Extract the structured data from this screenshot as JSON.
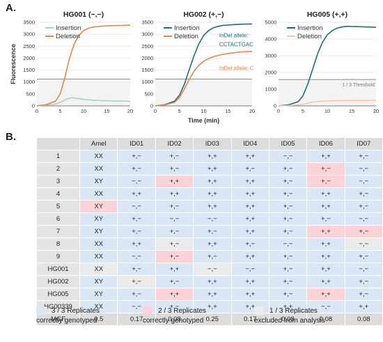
{
  "panel_a_label": "A.",
  "panel_b_label": "B.",
  "chart_data": [
    {
      "type": "line",
      "title": "HG001 (−,−)",
      "ylabel": "Fluorescence",
      "xlabel": "",
      "xlim": [
        0,
        20
      ],
      "ylim": [
        0,
        3500
      ],
      "xticks": [
        0,
        5,
        10,
        15,
        20
      ],
      "yticks": [
        0,
        500,
        1000,
        1500,
        2000,
        2500,
        3000,
        3500
      ],
      "legend": "top-left",
      "threshold": 1120,
      "threshold_label": "",
      "series": [
        {
          "name": "Insertion",
          "color": "#a8d3c4",
          "x": [
            0,
            2,
            4,
            5,
            6,
            7,
            7.5,
            8,
            9,
            10,
            12,
            14,
            16,
            18,
            20
          ],
          "y": [
            0,
            30,
            80,
            150,
            250,
            320,
            340,
            330,
            300,
            270,
            240,
            220,
            210,
            200,
            190
          ]
        },
        {
          "name": "Deletion",
          "color": "#e8834a",
          "x": [
            0,
            2,
            4,
            5,
            6,
            7,
            8,
            9,
            10,
            11,
            12,
            14,
            16,
            18,
            20
          ],
          "y": [
            0,
            50,
            200,
            500,
            1200,
            2000,
            2600,
            2950,
            3150,
            3250,
            3300,
            3340,
            3360,
            3370,
            3380
          ]
        }
      ],
      "annotations": []
    },
    {
      "type": "line",
      "title": "HG002 (+,−)",
      "ylabel": "",
      "xlabel": "Time (min)",
      "xlim": [
        0,
        20
      ],
      "ylim": [
        0,
        3500
      ],
      "xticks": [
        0,
        5,
        10,
        15,
        20
      ],
      "yticks": [
        0,
        500,
        1000,
        1500,
        2000,
        2500,
        3000,
        3500
      ],
      "legend": "top-left",
      "threshold": 1120,
      "threshold_label": "",
      "series": [
        {
          "name": "Insertion",
          "color": "#1f6b7f",
          "x": [
            0,
            2,
            4,
            5,
            6,
            7,
            8,
            9,
            10,
            11,
            12,
            13,
            14,
            16,
            18,
            20
          ],
          "y": [
            0,
            50,
            200,
            450,
            900,
            1500,
            2100,
            2600,
            2950,
            3150,
            3270,
            3330,
            3370,
            3400,
            3420,
            3430
          ]
        },
        {
          "name": "Deletion",
          "color": "#e8834a",
          "x": [
            0,
            2,
            4,
            5,
            6,
            7,
            8,
            9,
            10,
            11,
            12,
            14,
            16,
            18,
            20
          ],
          "y": [
            0,
            40,
            150,
            350,
            700,
            1100,
            1450,
            1700,
            1870,
            1980,
            2060,
            2160,
            2220,
            2260,
            2280
          ]
        }
      ],
      "annotations": [
        {
          "text": "InDel allele:",
          "color": "#1f6b7f",
          "x": 13.2,
          "y": 2870
        },
        {
          "text": "CCTACTGAC",
          "color": "#1f6b7f",
          "x": 13.2,
          "y": 2500
        },
        {
          "text": "InDel allele: C",
          "color": "#e8834a",
          "x": 13.2,
          "y": 1500
        }
      ]
    },
    {
      "type": "line",
      "title": "HG005 (+,+)",
      "ylabel": "",
      "xlabel": "",
      "xlim": [
        0,
        20
      ],
      "ylim": [
        0,
        5000
      ],
      "xticks": [
        0,
        5,
        10,
        15,
        20
      ],
      "yticks": [
        0,
        1000,
        2000,
        3000,
        4000,
        5000
      ],
      "legend": "top-left",
      "threshold": 1580,
      "threshold_label": "1 / 3 Threshold",
      "series": [
        {
          "name": "Insertion",
          "color": "#1f6b7f",
          "x": [
            0,
            2,
            4,
            5,
            6,
            7,
            8,
            9,
            10,
            11,
            12,
            13,
            14,
            16,
            18,
            20
          ],
          "y": [
            0,
            60,
            250,
            600,
            1300,
            2200,
            3100,
            3800,
            4250,
            4500,
            4650,
            4720,
            4760,
            4740,
            4720,
            4700
          ]
        },
        {
          "name": "Deletion",
          "color": "#f5c9a6",
          "x": [
            0,
            2,
            4,
            5,
            6,
            7,
            8,
            10,
            12,
            14,
            16,
            18,
            20
          ],
          "y": [
            0,
            20,
            60,
            100,
            160,
            220,
            260,
            300,
            310,
            315,
            320,
            320,
            320
          ]
        }
      ],
      "annotations": []
    }
  ],
  "table": {
    "columns": [
      "",
      "Amel",
      "ID01",
      "ID02",
      "ID03",
      "ID04",
      "ID05",
      "ID06",
      "ID07"
    ],
    "rows": [
      {
        "label": "1",
        "cells": [
          "XX",
          "+,−",
          "+,−",
          "+,+",
          "+,+",
          "−,−",
          "+,+",
          "+,−"
        ],
        "status": [
          "b",
          "b",
          "b",
          "b",
          "b",
          "b",
          "b",
          "b"
        ]
      },
      {
        "label": "2",
        "cells": [
          "XX",
          "+,−",
          "+,−",
          "+,+",
          "+,−",
          "+,−",
          "+,−",
          "−,−"
        ],
        "status": [
          "b",
          "b",
          "b",
          "b",
          "b",
          "b",
          "p",
          "b"
        ]
      },
      {
        "label": "3",
        "cells": [
          "XY",
          "−,−",
          "+,+",
          "+,+",
          "+,+",
          "+,−",
          "+,−",
          "−,−"
        ],
        "status": [
          "b",
          "b",
          "p",
          "b",
          "b",
          "b",
          "p",
          "b"
        ]
      },
      {
        "label": "4",
        "cells": [
          "XX",
          "+,+",
          "+,+",
          "+,+",
          "+,+",
          "+,−",
          "+,+",
          "+,−"
        ],
        "status": [
          "b",
          "b",
          "b",
          "b",
          "b",
          "b",
          "b",
          "b"
        ]
      },
      {
        "label": "5",
        "cells": [
          "XY",
          "−,−",
          "+,−",
          "+,+",
          "+,+",
          "+,−",
          "+,+",
          "+,−"
        ],
        "status": [
          "p",
          "b",
          "b",
          "b",
          "b",
          "b",
          "b",
          "b"
        ]
      },
      {
        "label": "6",
        "cells": [
          "XY",
          "+,−",
          "−,−",
          "−,−",
          "+,+",
          "+,−",
          "+,−",
          "−,−"
        ],
        "status": [
          "b",
          "b",
          "b",
          "b",
          "b",
          "b",
          "b",
          "b"
        ]
      },
      {
        "label": "7",
        "cells": [
          "XY",
          "+,−",
          "+,−",
          "+,−",
          "+,+",
          "+,−",
          "+,+",
          "+,−"
        ],
        "status": [
          "b",
          "b",
          "b",
          "b",
          "b",
          "b",
          "p",
          "p"
        ]
      },
      {
        "label": "8",
        "cells": [
          "XX",
          "+,+",
          "+,−",
          "+,+",
          "+,−",
          "−,−",
          "+,+",
          "−,−"
        ],
        "status": [
          "b",
          "b",
          "g",
          "b",
          "b",
          "b",
          "b",
          "g"
        ]
      },
      {
        "label": "9",
        "cells": [
          "XX",
          "−,−",
          "+,−",
          "+,−",
          "+,+",
          "+,−",
          "+,+",
          "+,−"
        ],
        "status": [
          "b",
          "b",
          "p",
          "b",
          "b",
          "b",
          "b",
          "b"
        ]
      },
      {
        "label": "HG001",
        "cells": [
          "XX",
          "+,−",
          "+,+",
          "−,−",
          "−,−",
          "+,−",
          "+,+",
          "−,−"
        ],
        "status": [
          "g",
          "b",
          "b",
          "g",
          "b",
          "b",
          "b",
          "b"
        ]
      },
      {
        "label": "HG002",
        "cells": [
          "XY",
          "+,−",
          "+,−",
          "+,+",
          "+,+",
          "+,−",
          "+,+",
          "+,−"
        ],
        "status": [
          "b",
          "g",
          "b",
          "b",
          "b",
          "b",
          "b",
          "b"
        ]
      },
      {
        "label": "HG005",
        "cells": [
          "XY",
          "+,−",
          "+,+",
          "+,+",
          "+,+",
          "+,−",
          "+,+",
          "+,−"
        ],
        "status": [
          "b",
          "b",
          "p",
          "b",
          "b",
          "b",
          "p",
          "b"
        ]
      },
      {
        "label": "HG00339",
        "cells": [
          "XX",
          "−,−",
          "+,−",
          "+,+",
          "+,+",
          "+,+",
          "−,−",
          "+,+"
        ],
        "status": [
          "b",
          "b",
          "b",
          "b",
          "b",
          "b",
          "b",
          "b"
        ]
      }
    ],
    "mgf": {
      "label": "MGF",
      "cells": [
        "0.5",
        "0.17",
        "0.08",
        "0.25",
        "0.17",
        "0.08",
        "0.08",
        "0.08"
      ]
    }
  },
  "legend_items": [
    {
      "line1": "3 / 3 Replicates",
      "line2": "correctly genotyped",
      "color": "#d9e7f5"
    },
    {
      "line1": "2 / 3 Replicates",
      "line2": "correctly genotyped",
      "color": "#f9d3d7"
    },
    {
      "line1": "1 / 3 Replicates",
      "line2": "excluded from analysis",
      "color": "#ebebeb"
    }
  ]
}
